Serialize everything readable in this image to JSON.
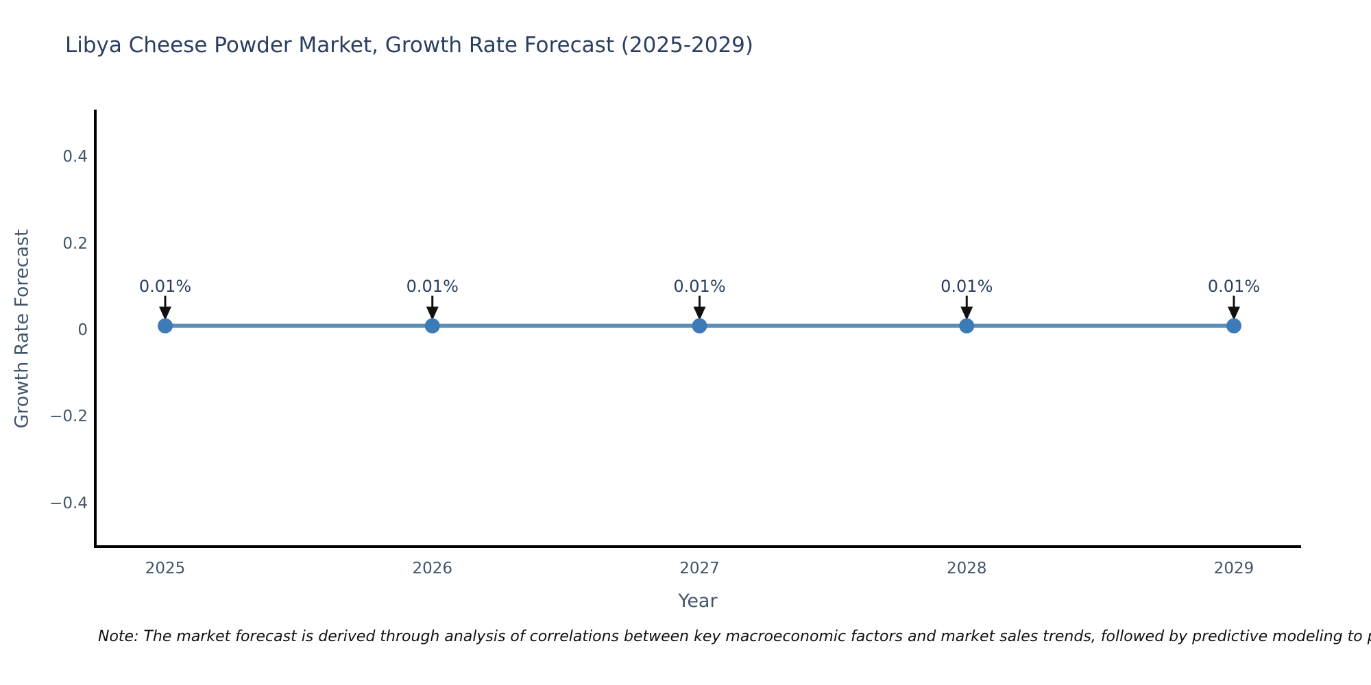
{
  "title": "Libya Cheese Powder Market, Growth Rate Forecast (2025-2029)",
  "note": "Note: The market forecast is derived through analysis of correlations between key macroeconomic factors and market sales trends, followed by predictive modeling to project future sa",
  "chart_data": {
    "type": "line",
    "title": "Libya Cheese Powder Market, Growth Rate Forecast (2025-2029)",
    "categories": [
      "2025",
      "2026",
      "2027",
      "2028",
      "2029"
    ],
    "values": [
      0.01,
      0.01,
      0.01,
      0.01,
      0.01
    ],
    "point_labels": [
      "0.01%",
      "0.01%",
      "0.01%",
      "0.01%",
      "0.01%"
    ],
    "xlabel": "Year",
    "ylabel": "Growth Rate Forecast",
    "ylim": [
      -0.5,
      0.52
    ],
    "y_ticks": [
      0.4,
      0.2,
      0,
      -0.2,
      -0.4
    ],
    "grid": false,
    "legend": "none",
    "line_color": "#5b8db9",
    "marker_color": "#3d7ab8",
    "arrow_color": "#111111"
  },
  "colors": {
    "title": "#2a3f5f",
    "tick": "#42556b",
    "axis": "#000000",
    "annotation": "#2a3f5f",
    "note": "#111111"
  }
}
